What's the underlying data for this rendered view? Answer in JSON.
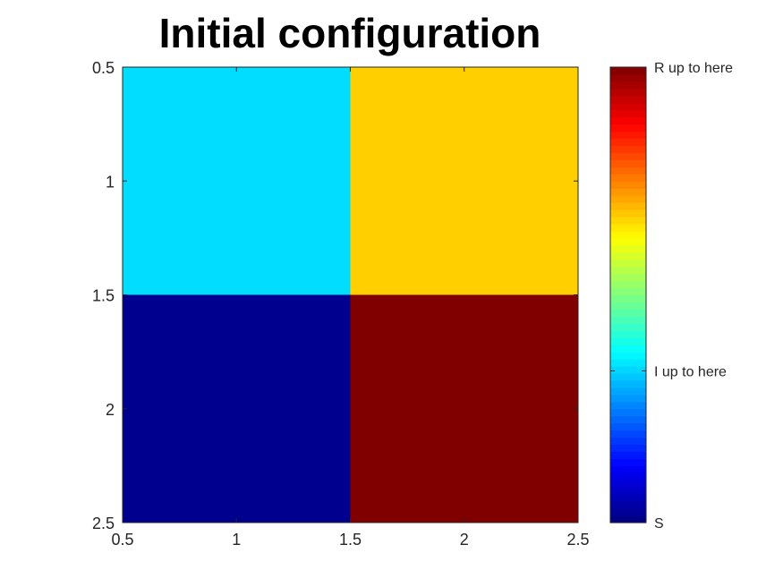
{
  "chart_data": {
    "type": "heatmap",
    "title": "Initial configuration",
    "x_ticks": [
      "0.5",
      "1",
      "1.5",
      "2",
      "2.5"
    ],
    "y_ticks": [
      "0.5",
      "1",
      "1.5",
      "2",
      "2.5"
    ],
    "xlim": [
      0.5,
      2.5
    ],
    "ylim": [
      0.5,
      2.5
    ],
    "y_reversed": true,
    "cells": [
      {
        "x": 1,
        "y": 1,
        "color": "#00DDFF"
      },
      {
        "x": 2,
        "y": 1,
        "color": "#FFCF00"
      },
      {
        "x": 1,
        "y": 2,
        "color": "#00008F"
      },
      {
        "x": 2,
        "y": 2,
        "color": "#800000"
      }
    ],
    "colormap": "jet",
    "colorbar": {
      "ticks": [
        {
          "label": "S",
          "fraction": 0.0
        },
        {
          "label": "I up to here",
          "fraction": 0.333
        },
        {
          "label": "R up to here",
          "fraction": 1.0
        }
      ]
    }
  }
}
